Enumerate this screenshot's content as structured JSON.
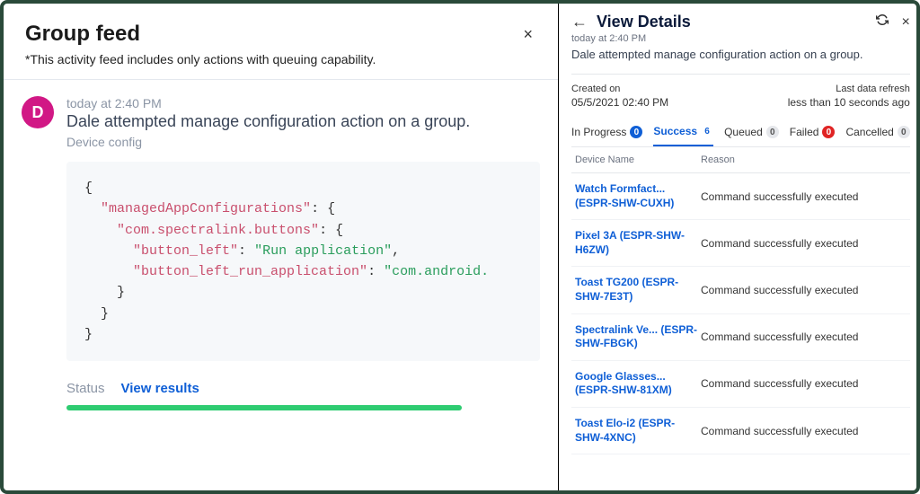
{
  "colors": {
    "accent_blue": "#0f5fd6",
    "avatar_bg": "#d11885",
    "progress_green": "#2ecc71",
    "code_key": "#c94f6d",
    "code_str": "#2a9d5c",
    "border_outer": "#2a4a3a"
  },
  "left": {
    "title": "Group feed",
    "subtitle": "*This activity feed includes only actions with queuing capability.",
    "close_icon": "×",
    "avatar_initial": "D",
    "timestamp": "today at 2:40 PM",
    "headline": "Dale attempted manage configuration action on a group.",
    "category": "Device config",
    "status_label": "Status",
    "view_results_label": "View results",
    "code": {
      "line1": "{",
      "line2_k": "\"managedAppConfigurations\"",
      "line2_r": ": {",
      "line3_k": "\"com.spectralink.buttons\"",
      "line3_r": ": {",
      "line4_k": "\"button_left\"",
      "line4_v": "\"Run application\"",
      "line4_r": ",",
      "line5_k": "\"button_left_run_application\"",
      "line5_v": "\"com.android.",
      "line6": "    }",
      "line7": "  }",
      "line8": "}"
    }
  },
  "right": {
    "back_icon": "←",
    "title": "View Details",
    "refresh_icon": "↻",
    "close_icon": "×",
    "timestamp": "today at 2:40 PM",
    "description": "Dale attempted manage configuration action on a group.",
    "created_label": "Created on",
    "created_value": "05/5/2021 02:40 PM",
    "refresh_label": "Last data refresh",
    "refresh_value": "less than 10 seconds ago",
    "tabs": [
      {
        "label": "In Progress",
        "count": "0",
        "badge_style": "blue",
        "active": false
      },
      {
        "label": "Success",
        "count": "6",
        "badge_style": "num",
        "active": true
      },
      {
        "label": "Queued",
        "count": "0",
        "badge_style": "grey",
        "active": false
      },
      {
        "label": "Failed",
        "count": "0",
        "badge_style": "red",
        "active": false
      },
      {
        "label": "Cancelled",
        "count": "0",
        "badge_style": "grey",
        "active": false
      }
    ],
    "columns": {
      "device": "Device Name",
      "reason": "Reason"
    },
    "rows": [
      {
        "name_l1": "Watch Formfact...",
        "name_l2": "(ESPR-SHW-CUXH)",
        "reason": "Command successfully executed"
      },
      {
        "name_l1": "Pixel 3A (ESPR-SHW-",
        "name_l2": "H6ZW)",
        "reason": "Command successfully executed"
      },
      {
        "name_l1": "Toast TG200 (ESPR-",
        "name_l2": "SHW-7E3T)",
        "reason": "Command successfully executed"
      },
      {
        "name_l1": "Spectralink Ve... (ESPR-",
        "name_l2": "SHW-FBGK)",
        "reason": "Command successfully executed"
      },
      {
        "name_l1": "Google Glasses...",
        "name_l2": "(ESPR-SHW-81XM)",
        "reason": "Command successfully executed"
      },
      {
        "name_l1": "Toast Elo-i2 (ESPR-",
        "name_l2": "SHW-4XNC)",
        "reason": "Command successfully executed"
      }
    ]
  }
}
